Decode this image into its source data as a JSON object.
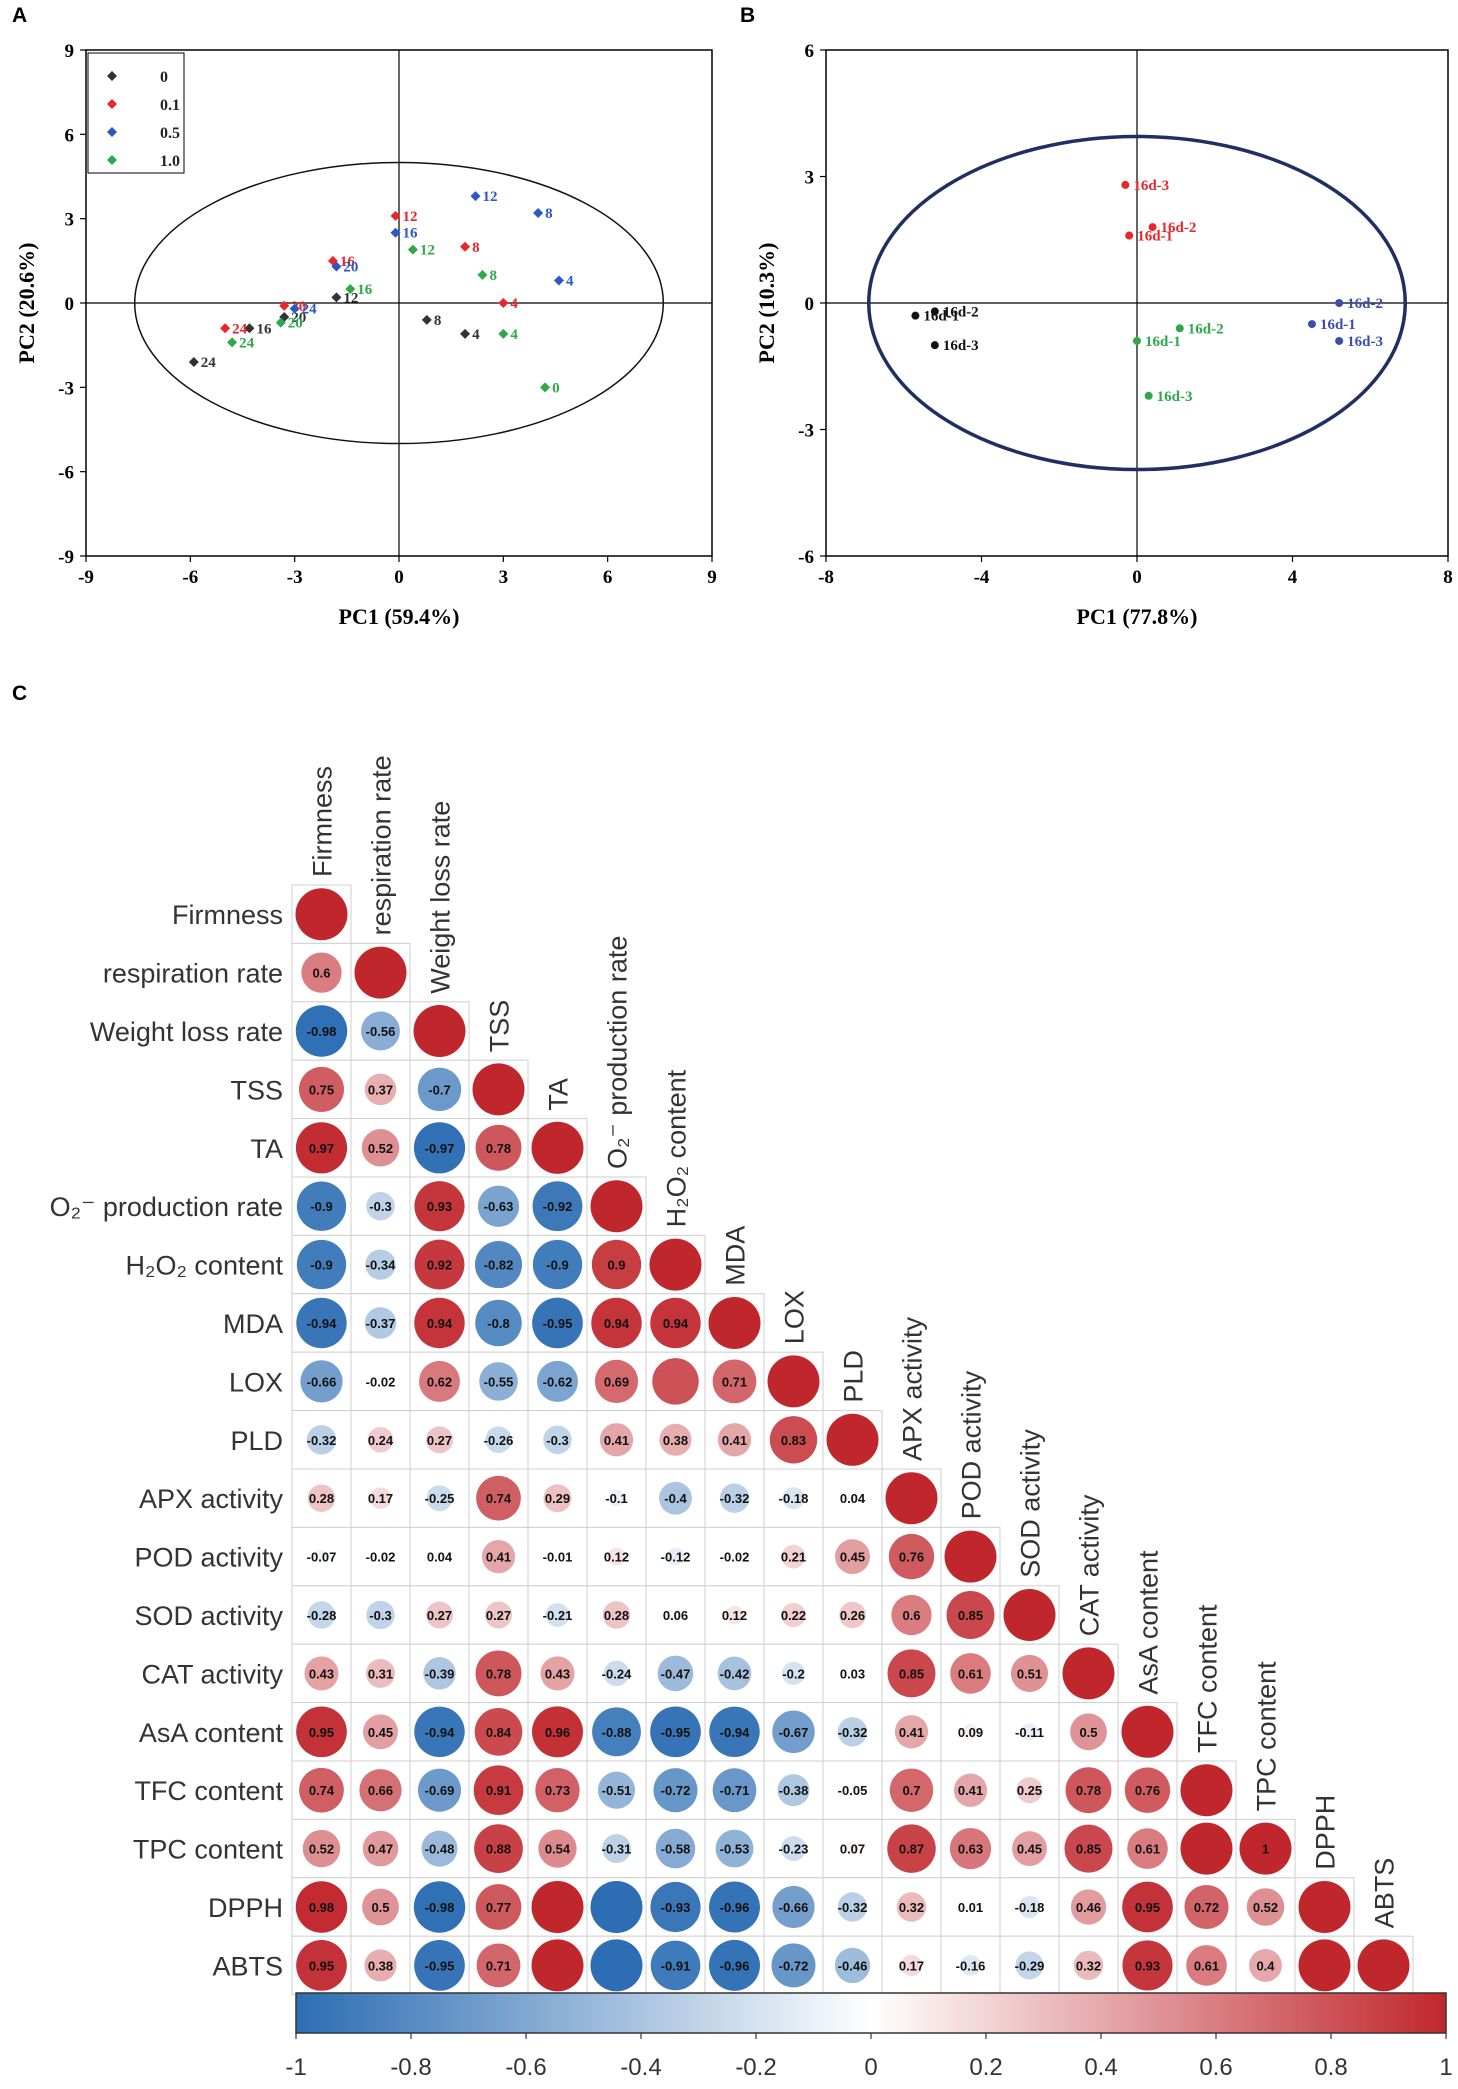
{
  "chart_data": [
    {
      "panel": "A",
      "type": "scatter",
      "xlabel": "PC1 (59.4%)",
      "ylabel": "PC2 (20.6%)",
      "xlim": [
        -9,
        9
      ],
      "ylim": [
        -9,
        9
      ],
      "xticks": [
        "-9",
        "-6",
        "-3",
        "0",
        "3",
        "6",
        "9"
      ],
      "yticks": [
        "9",
        "6",
        "3",
        "0",
        "-3",
        "-6",
        "-9"
      ],
      "legend": {
        "position": "top-left",
        "entries": [
          "0",
          "0.1",
          "0.5",
          "1.0"
        ]
      },
      "colors": {
        "0": "#333333",
        "0.1": "#e8262b",
        "0.5": "#2b58c6",
        "1.0": "#2fa84a"
      },
      "series": [
        {
          "name": "0",
          "points": [
            {
              "x": 0.8,
              "y": -0.6,
              "label": "8"
            },
            {
              "x": 1.9,
              "y": -1.1,
              "label": "4"
            },
            {
              "x": -1.8,
              "y": 0.2,
              "label": "12"
            },
            {
              "x": -4.3,
              "y": -0.9,
              "label": "16"
            },
            {
              "x": -3.3,
              "y": -0.5,
              "label": "20"
            },
            {
              "x": -5.9,
              "y": -2.1,
              "label": "24"
            }
          ]
        },
        {
          "name": "0.1",
          "points": [
            {
              "x": 3.0,
              "y": 0.0,
              "label": "4"
            },
            {
              "x": 1.9,
              "y": 2.0,
              "label": "8"
            },
            {
              "x": -0.1,
              "y": 3.1,
              "label": "12"
            },
            {
              "x": -1.9,
              "y": 1.5,
              "label": "16"
            },
            {
              "x": -3.3,
              "y": -0.1,
              "label": "20"
            },
            {
              "x": -5.0,
              "y": -0.9,
              "label": "24"
            }
          ]
        },
        {
          "name": "0.5",
          "points": [
            {
              "x": 4.6,
              "y": 0.8,
              "label": "4"
            },
            {
              "x": 4.0,
              "y": 3.2,
              "label": "8"
            },
            {
              "x": 2.2,
              "y": 3.8,
              "label": "12"
            },
            {
              "x": -0.1,
              "y": 2.5,
              "label": "16"
            },
            {
              "x": -1.8,
              "y": 1.3,
              "label": "20"
            },
            {
              "x": -3.0,
              "y": -0.2,
              "label": "24"
            }
          ]
        },
        {
          "name": "1.0",
          "points": [
            {
              "x": 4.2,
              "y": -3.0,
              "label": "0"
            },
            {
              "x": 3.0,
              "y": -1.1,
              "label": "4"
            },
            {
              "x": 2.4,
              "y": 1.0,
              "label": "8"
            },
            {
              "x": 0.4,
              "y": 1.9,
              "label": "12"
            },
            {
              "x": -1.4,
              "y": 0.5,
              "label": "16"
            },
            {
              "x": -3.4,
              "y": -0.7,
              "label": "20"
            },
            {
              "x": -4.8,
              "y": -1.4,
              "label": "24"
            }
          ]
        }
      ]
    },
    {
      "panel": "B",
      "type": "scatter",
      "xlabel": "PC1 (77.8%)",
      "ylabel": "PC2 (10.3%)",
      "xlim": [
        -8,
        8
      ],
      "ylim": [
        -6,
        6
      ],
      "xticks": [
        "-8",
        "-4",
        "0",
        "4",
        "8"
      ],
      "yticks": [
        "6",
        "3",
        "0",
        "-3",
        "-6"
      ],
      "series": [
        {
          "name": "black",
          "color": "#111111",
          "points": [
            {
              "x": -5.7,
              "y": -0.3,
              "label": "16d-1"
            },
            {
              "x": -5.2,
              "y": -0.2,
              "label": "16d-2"
            },
            {
              "x": -5.2,
              "y": -1.0,
              "label": "16d-3"
            }
          ]
        },
        {
          "name": "red",
          "color": "#e8262b",
          "points": [
            {
              "x": -0.2,
              "y": 1.6,
              "label": "16d-1"
            },
            {
              "x": 0.4,
              "y": 1.8,
              "label": "16d-2"
            },
            {
              "x": -0.3,
              "y": 2.8,
              "label": "16d-3"
            }
          ]
        },
        {
          "name": "green",
          "color": "#2fa84a",
          "points": [
            {
              "x": 0.0,
              "y": -0.9,
              "label": "16d-1"
            },
            {
              "x": 1.1,
              "y": -0.6,
              "label": "16d-2"
            },
            {
              "x": 0.3,
              "y": -2.2,
              "label": "16d-3"
            }
          ]
        },
        {
          "name": "blue",
          "color": "#3a4db0",
          "points": [
            {
              "x": 4.5,
              "y": -0.5,
              "label": "16d-1"
            },
            {
              "x": 5.2,
              "y": 0.0,
              "label": "16d-2"
            },
            {
              "x": 5.2,
              "y": -0.9,
              "label": "16d-3"
            }
          ]
        }
      ]
    },
    {
      "panel": "C",
      "type": "heatmap",
      "variables": [
        "Firmness",
        "respiration rate",
        "Weight loss rate",
        "TSS",
        "TA",
        "O₂⁻ production rate",
        "H₂O₂ content",
        "MDA",
        "LOX",
        "PLD",
        "APX activity",
        "POD activity",
        "SOD activity",
        "CAT activity",
        "AsA content",
        "TFC content",
        "TPC content",
        "DPPH",
        "ABTS"
      ],
      "column_labels": [
        "Firmness",
        "respiration rate",
        "Weight loss rate",
        "TSS",
        "TA",
        "O₂⁻ production rate",
        "H₂O₂ content",
        "MDA",
        "LOX",
        "PLD",
        "APX activity",
        "POD activity",
        "SOD activity",
        "CAT activity",
        "AsA content",
        "TFC content",
        "TPC content",
        "DPPH",
        "ABTS"
      ],
      "matrix": [
        [
          1
        ],
        [
          0.6,
          1
        ],
        [
          -0.98,
          -0.56,
          1
        ],
        [
          0.75,
          0.37,
          -0.7,
          1
        ],
        [
          0.97,
          0.52,
          -0.97,
          0.78,
          1
        ],
        [
          -0.9,
          -0.3,
          0.93,
          -0.63,
          -0.92,
          1
        ],
        [
          -0.9,
          -0.34,
          0.92,
          -0.82,
          -0.9,
          0.9,
          1
        ],
        [
          -0.94,
          -0.37,
          0.94,
          -0.8,
          -0.95,
          0.94,
          0.94,
          1
        ],
        [
          -0.66,
          -0.02,
          0.62,
          -0.55,
          -0.62,
          0.69,
          0.8,
          0.71,
          1
        ],
        [
          -0.32,
          0.24,
          0.27,
          -0.26,
          -0.3,
          0.41,
          0.38,
          0.41,
          0.83,
          1
        ],
        [
          0.28,
          0.17,
          -0.25,
          0.74,
          0.29,
          -0.1,
          -0.4,
          -0.32,
          -0.18,
          0.04,
          1
        ],
        [
          -0.07,
          -0.02,
          0.04,
          0.41,
          -0.01,
          0.12,
          -0.12,
          -0.02,
          0.21,
          0.45,
          0.76,
          1
        ],
        [
          -0.28,
          -0.3,
          0.27,
          0.27,
          -0.21,
          0.28,
          0.06,
          0.12,
          0.22,
          0.26,
          0.6,
          0.85,
          1
        ],
        [
          0.43,
          0.31,
          -0.39,
          0.78,
          0.43,
          -0.24,
          -0.47,
          -0.42,
          -0.2,
          0.03,
          0.85,
          0.61,
          0.51,
          1
        ],
        [
          0.95,
          0.45,
          -0.94,
          0.84,
          0.96,
          -0.88,
          -0.95,
          -0.94,
          -0.67,
          -0.32,
          0.41,
          0.09,
          -0.11,
          0.5,
          1
        ],
        [
          0.74,
          0.66,
          -0.69,
          0.91,
          0.73,
          -0.51,
          -0.72,
          -0.71,
          -0.38,
          -0.05,
          0.7,
          0.41,
          0.25,
          0.78,
          0.76,
          1
        ],
        [
          0.52,
          0.47,
          -0.48,
          0.88,
          0.54,
          -0.31,
          -0.58,
          -0.53,
          -0.23,
          0.07,
          0.87,
          0.63,
          0.45,
          0.85,
          0.61,
          1,
          1
        ],
        [
          0.98,
          0.5,
          -0.98,
          0.77,
          1,
          -1,
          -0.93,
          -0.96,
          -0.66,
          -0.32,
          0.32,
          0.01,
          -0.18,
          0.46,
          0.95,
          0.72,
          0.52,
          1
        ],
        [
          0.95,
          0.38,
          -0.95,
          0.71,
          1,
          -1,
          -0.91,
          -0.96,
          -0.72,
          -0.46,
          0.17,
          -0.16,
          -0.29,
          0.32,
          0.93,
          0.61,
          0.4,
          1,
          1
        ]
      ],
      "labels": [
        [
          ""
        ],
        [
          "0.6",
          ""
        ],
        [
          "-0.98",
          "-0.56",
          ""
        ],
        [
          "0.75",
          "0.37",
          "-0.7",
          ""
        ],
        [
          "0.97",
          "0.52",
          "-0.97",
          "0.78",
          ""
        ],
        [
          "-0.9",
          "-0.3",
          "0.93",
          "-0.63",
          "-0.92",
          ""
        ],
        [
          "-0.9",
          "-0.34",
          "0.92",
          "-0.82",
          "-0.9",
          "0.9",
          ""
        ],
        [
          "-0.94",
          "-0.37",
          "0.94",
          "-0.8",
          "-0.95",
          "0.94",
          "0.94",
          ""
        ],
        [
          "-0.66",
          "-0.02",
          "0.62",
          "-0.55",
          "-0.62",
          "0.69",
          "",
          "0.71",
          ""
        ],
        [
          "-0.32",
          "0.24",
          "0.27",
          "-0.26",
          "-0.3",
          "0.41",
          "0.38",
          "0.41",
          "0.83",
          ""
        ],
        [
          "0.28",
          "0.17",
          "-0.25",
          "0.74",
          "0.29",
          "-0.1",
          "-0.4",
          "-0.32",
          "-0.18",
          "0.04",
          ""
        ],
        [
          "-0.07",
          "-0.02",
          "0.04",
          "0.41",
          "-0.01",
          "0.12",
          "-0.12",
          "-0.02",
          "0.21",
          "0.45",
          "0.76",
          ""
        ],
        [
          "-0.28",
          "-0.3",
          "0.27",
          "0.27",
          "-0.21",
          "0.28",
          "0.06",
          "0.12",
          "0.22",
          "0.26",
          "0.6",
          "0.85",
          ""
        ],
        [
          "0.43",
          "0.31",
          "-0.39",
          "0.78",
          "0.43",
          "-0.24",
          "-0.47",
          "-0.42",
          "-0.2",
          "0.03",
          "0.85",
          "0.61",
          "0.51",
          ""
        ],
        [
          "0.95",
          "0.45",
          "-0.94",
          "0.84",
          "0.96",
          "-0.88",
          "-0.95",
          "-0.94",
          "-0.67",
          "-0.32",
          "0.41",
          "0.09",
          "-0.11",
          "0.5",
          ""
        ],
        [
          "0.74",
          "0.66",
          "-0.69",
          "0.91",
          "0.73",
          "-0.51",
          "-0.72",
          "-0.71",
          "-0.38",
          "-0.05",
          "0.7",
          "0.41",
          "0.25",
          "0.78",
          "0.76",
          ""
        ],
        [
          "0.52",
          "0.47",
          "-0.48",
          "0.88",
          "0.54",
          "-0.31",
          "-0.58",
          "-0.53",
          "-0.23",
          "0.07",
          "0.87",
          "0.63",
          "0.45",
          "0.85",
          "0.61",
          "",
          "1"
        ],
        [
          "0.98",
          "0.5",
          "-0.98",
          "0.77",
          "",
          "",
          "-0.93",
          "-0.96",
          "-0.66",
          "-0.32",
          "0.32",
          "0.01",
          "-0.18",
          "0.46",
          "0.95",
          "0.72",
          "0.52",
          ""
        ],
        [
          "0.95",
          "0.38",
          "-0.95",
          "0.71",
          "",
          "",
          "-0.91",
          "-0.96",
          "-0.72",
          "-0.46",
          "0.17",
          "-0.16",
          "-0.29",
          "0.32",
          "0.93",
          "0.61",
          "0.4",
          "",
          ""
        ]
      ],
      "colorbar": {
        "range": [
          -1,
          1
        ],
        "ticks": [
          "-1",
          "-0.8",
          "-0.6",
          "-0.4",
          "-0.2",
          "0",
          "0.2",
          "0.4",
          "0.6",
          "0.8",
          "1"
        ],
        "low_color": "#2c6db3",
        "mid_color": "#ffffff",
        "high_color": "#c0272d"
      }
    }
  ],
  "panel_letters": {
    "a": "A",
    "b": "B",
    "c": "C"
  }
}
